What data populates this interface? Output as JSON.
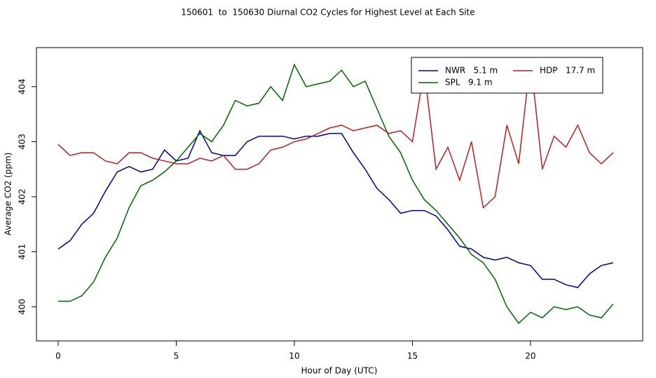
{
  "chart_data": {
    "type": "line",
    "title": "150601  to  150630 Diurnal CO2 Cycles for Highest Level at Each Site",
    "xlabel": "Hour of Day (UTC)",
    "ylabel": "Average CO2 (ppm)",
    "x": [
      0,
      0.5,
      1,
      1.5,
      2,
      2.5,
      3,
      3.5,
      4,
      4.5,
      5,
      5.5,
      6,
      6.5,
      7,
      7.5,
      8,
      8.5,
      9,
      9.5,
      10,
      10.5,
      11,
      11.5,
      12,
      12.5,
      13,
      13.5,
      14,
      14.5,
      15,
      15.5,
      16,
      16.5,
      17,
      17.5,
      18,
      18.5,
      19,
      19.5,
      20,
      20.5,
      21,
      21.5,
      22,
      22.5,
      23,
      23.5
    ],
    "series": [
      {
        "name": "NWR   5.1 m",
        "color": "#00008b",
        "values": [
          401.05,
          401.2,
          401.5,
          401.7,
          402.1,
          402.45,
          402.55,
          402.45,
          402.5,
          402.85,
          402.65,
          402.7,
          403.2,
          402.8,
          402.75,
          402.75,
          403.0,
          403.1,
          403.1,
          403.1,
          403.05,
          403.1,
          403.1,
          403.15,
          403.15,
          402.8,
          402.5,
          402.15,
          401.95,
          401.7,
          401.75,
          401.75,
          401.65,
          401.4,
          401.1,
          401.05,
          400.9,
          400.85,
          400.9,
          400.8,
          400.75,
          400.5,
          400.5,
          400.4,
          400.35,
          400.6,
          400.75,
          400.8
        ]
      },
      {
        "name": "SPL   9.1 m",
        "color": "#006400",
        "values": [
          400.1,
          400.1,
          400.2,
          400.45,
          400.9,
          401.25,
          401.8,
          402.2,
          402.3,
          402.45,
          402.65,
          402.9,
          403.15,
          403.0,
          403.3,
          403.75,
          403.65,
          403.7,
          404.0,
          403.75,
          404.4,
          404.0,
          404.05,
          404.1,
          404.3,
          404.0,
          404.1,
          403.6,
          403.1,
          402.8,
          402.3,
          401.95,
          401.75,
          401.5,
          401.25,
          400.95,
          400.8,
          400.5,
          400.0,
          399.7,
          399.9,
          399.8,
          400.0,
          399.95,
          400.0,
          399.85,
          399.8,
          400.05
        ]
      },
      {
        "name": "HDP   17.7 m",
        "color": "#b22222",
        "values": [
          402.95,
          402.75,
          402.8,
          402.8,
          402.65,
          402.6,
          402.8,
          402.8,
          402.7,
          402.65,
          402.6,
          402.6,
          402.7,
          402.65,
          402.75,
          402.5,
          402.5,
          402.6,
          402.85,
          402.9,
          403.0,
          403.05,
          403.15,
          403.25,
          403.3,
          403.2,
          403.25,
          403.3,
          403.15,
          403.2,
          403.0,
          404.3,
          402.5,
          402.9,
          402.3,
          403.0,
          401.8,
          402.0,
          403.3,
          402.6,
          404.5,
          402.5,
          403.1,
          402.9,
          403.3,
          402.8,
          402.6,
          402.8
        ]
      }
    ],
    "xlim": [
      -0.92,
      24.75
    ],
    "xticks": [
      0,
      5,
      10,
      15,
      20
    ],
    "ylim": [
      399.38,
      404.71
    ],
    "yticks": [
      400,
      401,
      402,
      403,
      404
    ],
    "legend": "topright",
    "grid": false
  }
}
